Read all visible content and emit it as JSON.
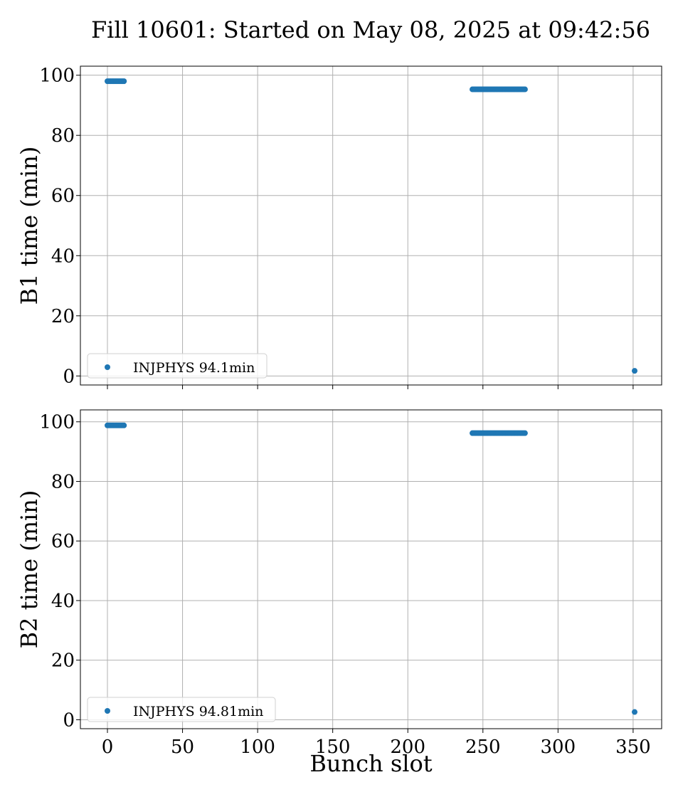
{
  "chart_data": {
    "title": "Fill 10601: Started on May 08, 2025 at 09:42:56",
    "type": "scatter",
    "xlabel": "Bunch slot",
    "xlim": [
      -18,
      369
    ],
    "xticks": [
      0,
      50,
      100,
      150,
      200,
      250,
      300,
      350
    ],
    "grid": true,
    "color": "#1f77b4",
    "panels": [
      {
        "ylabel": "B1 time (min)",
        "ylim": [
          -3,
          103
        ],
        "yticks": [
          0,
          20,
          40,
          60,
          80,
          100
        ],
        "legend": "lower left",
        "series": [
          {
            "name": "INJPHYS 94.1min",
            "groups": [
              {
                "x_start": 0,
                "x_end": 11,
                "y": 98
              },
              {
                "x_start": 243,
                "x_end": 278,
                "y": 95.3
              },
              {
                "x_start": 351,
                "x_end": 351,
                "y": 1.7
              }
            ]
          }
        ]
      },
      {
        "ylabel": "B2 time (min)",
        "ylim": [
          -3,
          104
        ],
        "yticks": [
          0,
          20,
          40,
          60,
          80,
          100
        ],
        "legend": "lower left",
        "series": [
          {
            "name": "INJPHYS 94.81min",
            "groups": [
              {
                "x_start": 0,
                "x_end": 11,
                "y": 98.8
              },
              {
                "x_start": 243,
                "x_end": 278,
                "y": 96.2
              },
              {
                "x_start": 351,
                "x_end": 351,
                "y": 2.6
              }
            ]
          }
        ]
      }
    ]
  }
}
